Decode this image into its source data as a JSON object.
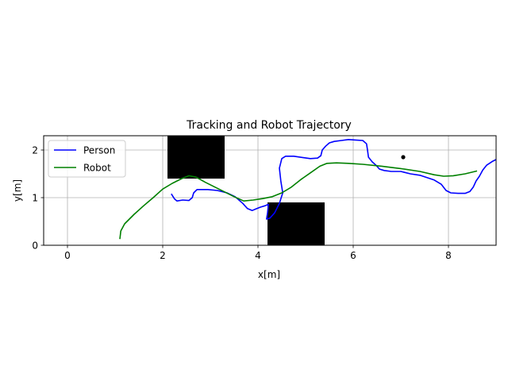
{
  "chart_data": {
    "type": "line",
    "title": "Tracking and Robot Trajectory",
    "xlabel": "x[m]",
    "ylabel": "y[m]",
    "xlim": [
      -0.5,
      9.0
    ],
    "ylim": [
      0.0,
      2.3
    ],
    "xticks": [
      0,
      2,
      4,
      6,
      8
    ],
    "yticks": [
      0,
      1,
      2
    ],
    "xtick_labels": [
      "0",
      "2",
      "4",
      "6",
      "8"
    ],
    "ytick_labels": [
      "0",
      "1",
      "2"
    ],
    "grid": true,
    "legend_position": "upper-left",
    "series": [
      {
        "name": "Person",
        "color": "#0000ff",
        "points": [
          [
            2.18,
            1.08
          ],
          [
            2.25,
            0.97
          ],
          [
            2.3,
            0.93
          ],
          [
            2.42,
            0.95
          ],
          [
            2.55,
            0.94
          ],
          [
            2.62,
            1.0
          ],
          [
            2.65,
            1.1
          ],
          [
            2.72,
            1.17
          ],
          [
            2.95,
            1.17
          ],
          [
            3.15,
            1.15
          ],
          [
            3.35,
            1.1
          ],
          [
            3.52,
            1.02
          ],
          [
            3.68,
            0.88
          ],
          [
            3.78,
            0.77
          ],
          [
            3.88,
            0.73
          ],
          [
            3.95,
            0.76
          ],
          [
            4.05,
            0.8
          ],
          [
            4.15,
            0.83
          ],
          [
            4.22,
            0.86
          ],
          [
            4.2,
            0.67
          ],
          [
            4.18,
            0.55
          ],
          [
            4.25,
            0.57
          ],
          [
            4.35,
            0.68
          ],
          [
            4.45,
            0.88
          ],
          [
            4.52,
            1.1
          ],
          [
            4.48,
            1.35
          ],
          [
            4.45,
            1.62
          ],
          [
            4.5,
            1.82
          ],
          [
            4.58,
            1.87
          ],
          [
            4.75,
            1.87
          ],
          [
            4.95,
            1.84
          ],
          [
            5.1,
            1.82
          ],
          [
            5.25,
            1.83
          ],
          [
            5.32,
            1.88
          ],
          [
            5.35,
            2.0
          ],
          [
            5.42,
            2.08
          ],
          [
            5.5,
            2.15
          ],
          [
            5.6,
            2.18
          ],
          [
            5.75,
            2.2
          ],
          [
            5.9,
            2.22
          ],
          [
            6.05,
            2.21
          ],
          [
            6.2,
            2.2
          ],
          [
            6.28,
            2.13
          ],
          [
            6.3,
            2.0
          ],
          [
            6.32,
            1.85
          ],
          [
            6.4,
            1.75
          ],
          [
            6.48,
            1.68
          ],
          [
            6.55,
            1.6
          ],
          [
            6.65,
            1.57
          ],
          [
            6.8,
            1.55
          ],
          [
            7.0,
            1.55
          ],
          [
            7.2,
            1.5
          ],
          [
            7.4,
            1.47
          ],
          [
            7.55,
            1.42
          ],
          [
            7.7,
            1.37
          ],
          [
            7.85,
            1.28
          ],
          [
            7.95,
            1.15
          ],
          [
            8.05,
            1.1
          ],
          [
            8.2,
            1.09
          ],
          [
            8.35,
            1.09
          ],
          [
            8.45,
            1.13
          ],
          [
            8.52,
            1.22
          ],
          [
            8.58,
            1.35
          ],
          [
            8.65,
            1.45
          ],
          [
            8.72,
            1.58
          ],
          [
            8.8,
            1.68
          ],
          [
            8.92,
            1.76
          ],
          [
            9.0,
            1.8
          ]
        ]
      },
      {
        "name": "Robot",
        "color": "#008000",
        "points": [
          [
            1.1,
            0.13
          ],
          [
            1.12,
            0.3
          ],
          [
            1.2,
            0.45
          ],
          [
            1.4,
            0.65
          ],
          [
            1.6,
            0.83
          ],
          [
            1.8,
            1.0
          ],
          [
            2.0,
            1.18
          ],
          [
            2.2,
            1.3
          ],
          [
            2.4,
            1.4
          ],
          [
            2.55,
            1.46
          ],
          [
            2.7,
            1.43
          ],
          [
            2.9,
            1.32
          ],
          [
            3.1,
            1.22
          ],
          [
            3.3,
            1.12
          ],
          [
            3.5,
            1.02
          ],
          [
            3.7,
            0.93
          ],
          [
            3.9,
            0.95
          ],
          [
            4.1,
            0.98
          ],
          [
            4.3,
            1.02
          ],
          [
            4.5,
            1.1
          ],
          [
            4.7,
            1.22
          ],
          [
            4.9,
            1.38
          ],
          [
            5.1,
            1.52
          ],
          [
            5.3,
            1.66
          ],
          [
            5.45,
            1.72
          ],
          [
            5.65,
            1.73
          ],
          [
            5.9,
            1.72
          ],
          [
            6.2,
            1.7
          ],
          [
            6.6,
            1.66
          ],
          [
            7.0,
            1.61
          ],
          [
            7.4,
            1.55
          ],
          [
            7.7,
            1.48
          ],
          [
            7.9,
            1.45
          ],
          [
            8.1,
            1.46
          ],
          [
            8.35,
            1.5
          ],
          [
            8.6,
            1.56
          ]
        ]
      }
    ],
    "obstacles": [
      {
        "x0": 2.1,
        "x1": 3.3,
        "y0": 1.4,
        "y1": 2.3
      },
      {
        "x0": 4.2,
        "x1": 5.4,
        "y0": 0.0,
        "y1": 0.9
      }
    ],
    "markers": [
      {
        "x": 7.05,
        "y": 1.85
      }
    ]
  }
}
